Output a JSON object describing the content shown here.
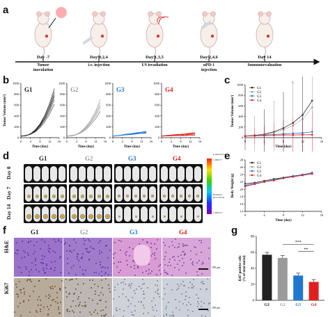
{
  "panels": [
    "a",
    "b",
    "c",
    "d",
    "e",
    "f",
    "g"
  ],
  "timeline": {
    "events": [
      {
        "day": "Day -7",
        "label": "Tumor\ninoculation"
      },
      {
        "day": "Day 0,2,4",
        "label": "i.v. injection"
      },
      {
        "day": "Day 1,3,5",
        "label": "US irradiation"
      },
      {
        "day": "Day 2,4,6",
        "label": "αPD-1\ninjection"
      },
      {
        "day": "Day 14",
        "label": "Immunoevaluation"
      }
    ]
  },
  "groups": [
    {
      "name": "G1",
      "color": "#222222"
    },
    {
      "name": "G2",
      "color": "#9a9a9a"
    },
    {
      "name": "G3",
      "color": "#1f77d0"
    },
    {
      "name": "G4",
      "color": "#e02020"
    }
  ],
  "panel_b": {
    "ylabel": "Tumor Volume (mm³)",
    "xlabel": "Time (day)",
    "yticks": [
      "0",
      "200",
      "400",
      "600",
      "800",
      "1000"
    ],
    "xticks": [
      "0",
      "4",
      "8",
      "12",
      "16"
    ]
  },
  "chart_data": [
    {
      "type": "line",
      "panel": "c",
      "xlabel": "Time (day)",
      "ylabel": "Tumor Volume (mm³)",
      "xlim": [
        0,
        16
      ],
      "ylim": [
        0,
        1000
      ],
      "xticks": [
        0,
        4,
        8,
        12,
        16
      ],
      "yticks": [
        0,
        200,
        400,
        600,
        800,
        1000
      ],
      "x": [
        0,
        2,
        4,
        6,
        8,
        10,
        12,
        14
      ],
      "series": [
        {
          "name": "G1",
          "values": [
            30,
            45,
            65,
            110,
            180,
            280,
            430,
            700
          ]
        },
        {
          "name": "G2",
          "values": [
            30,
            40,
            60,
            95,
            150,
            230,
            350,
            570
          ]
        },
        {
          "name": "G3",
          "values": [
            30,
            40,
            50,
            60,
            70,
            80,
            90,
            110
          ]
        },
        {
          "name": "G4",
          "values": [
            30,
            35,
            40,
            45,
            50,
            50,
            55,
            55
          ]
        }
      ],
      "legend": "top-left"
    },
    {
      "type": "line",
      "panel": "e",
      "xlabel": "Time (day)",
      "ylabel": "Body Weight (g)",
      "xlim": [
        0,
        16
      ],
      "ylim": [
        14,
        28
      ],
      "xticks": [
        0,
        4,
        8,
        12,
        16
      ],
      "yticks": [
        14,
        16,
        18,
        20,
        22,
        24,
        26,
        28
      ],
      "x": [
        0,
        2,
        4,
        6,
        8,
        10,
        12,
        14
      ],
      "series": [
        {
          "name": "G1",
          "values": [
            21.5,
            21.8,
            22.3,
            22.8,
            23.2,
            23.6,
            24.0,
            24.5
          ]
        },
        {
          "name": "G2",
          "values": [
            21.2,
            21.6,
            22.0,
            22.5,
            23.0,
            23.5,
            23.9,
            24.3
          ]
        },
        {
          "name": "G3",
          "values": [
            21.0,
            21.5,
            22.0,
            22.6,
            23.1,
            23.5,
            24.0,
            24.4
          ]
        },
        {
          "name": "G4",
          "values": [
            20.8,
            21.4,
            22.0,
            22.4,
            23.0,
            23.4,
            23.8,
            24.2
          ]
        }
      ],
      "legend": "top-left"
    },
    {
      "type": "bar",
      "panel": "g",
      "ylabel": "Ki67 positive cells\n(% of total nuclei)",
      "categories": [
        "G1",
        "G2",
        "G3",
        "G4"
      ],
      "values": [
        57,
        53,
        31,
        23
      ],
      "ylim": [
        0,
        80
      ],
      "yticks": [
        0,
        20,
        40,
        60,
        80
      ],
      "significance": [
        "***",
        "**"
      ]
    }
  ],
  "panel_d": {
    "rows": [
      "Day 0",
      "Day 7",
      "Day 14"
    ],
    "scale_top": "Luminescence",
    "scale_max": "1.000e+7",
    "scale_min": "1.000e+5",
    "scale_caption": "Radiance\n(p/s/cm²/sr)"
  },
  "panel_f": {
    "rows": [
      "H&E",
      "Ki67"
    ],
    "scalebar": "100 μm"
  }
}
